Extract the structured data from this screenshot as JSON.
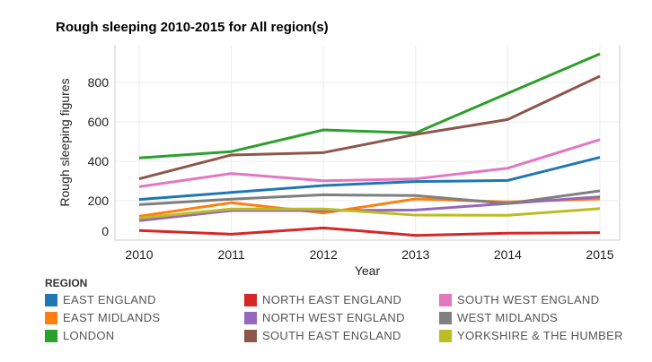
{
  "chart_data": {
    "type": "line",
    "title": "Rough sleeping 2010-2015 for All region(s)",
    "xlabel": "Year",
    "ylabel": "Rough sleeping figures",
    "x": [
      "2010",
      "2011",
      "2012",
      "2013",
      "2014",
      "2015"
    ],
    "yticks": [
      "0",
      "200",
      "400",
      "600",
      "800"
    ],
    "ylim": [
      0,
      960
    ],
    "grid": true,
    "legend_title": "REGION",
    "legend_position": "bottom",
    "series": [
      {
        "name": "EAST ENGLAND",
        "color": "#1f77b4",
        "values": [
          206,
          242,
          277,
          297,
          303,
          420
        ]
      },
      {
        "name": "EAST MIDLANDS",
        "color": "#ff7f0e",
        "values": [
          121,
          190,
          138,
          209,
          194,
          209
        ]
      },
      {
        "name": "LONDON",
        "color": "#2ca02c",
        "values": [
          417,
          449,
          559,
          544,
          745,
          945
        ]
      },
      {
        "name": "NORTH EAST ENGLAND",
        "color": "#d62728",
        "values": [
          49,
          30,
          62,
          24,
          35,
          38
        ]
      },
      {
        "name": "NORTH WEST ENGLAND",
        "color": "#9467bd",
        "values": [
          99,
          150,
          150,
          153,
          186,
          220
        ]
      },
      {
        "name": "SOUTH EAST ENGLAND",
        "color": "#8c564b",
        "values": [
          311,
          432,
          444,
          536,
          612,
          832
        ]
      },
      {
        "name": "SOUTH WEST ENGLAND",
        "color": "#e377c2",
        "values": [
          271,
          338,
          301,
          311,
          365,
          510
        ]
      },
      {
        "name": "WEST MIDLANDS",
        "color": "#7f7f7f",
        "values": [
          180,
          208,
          230,
          226,
          186,
          250
        ]
      },
      {
        "name": "YORKSHIRE & THE HUMBER",
        "color": "#bcbd22",
        "values": [
          112,
          158,
          158,
          127,
          126,
          160
        ]
      }
    ]
  }
}
